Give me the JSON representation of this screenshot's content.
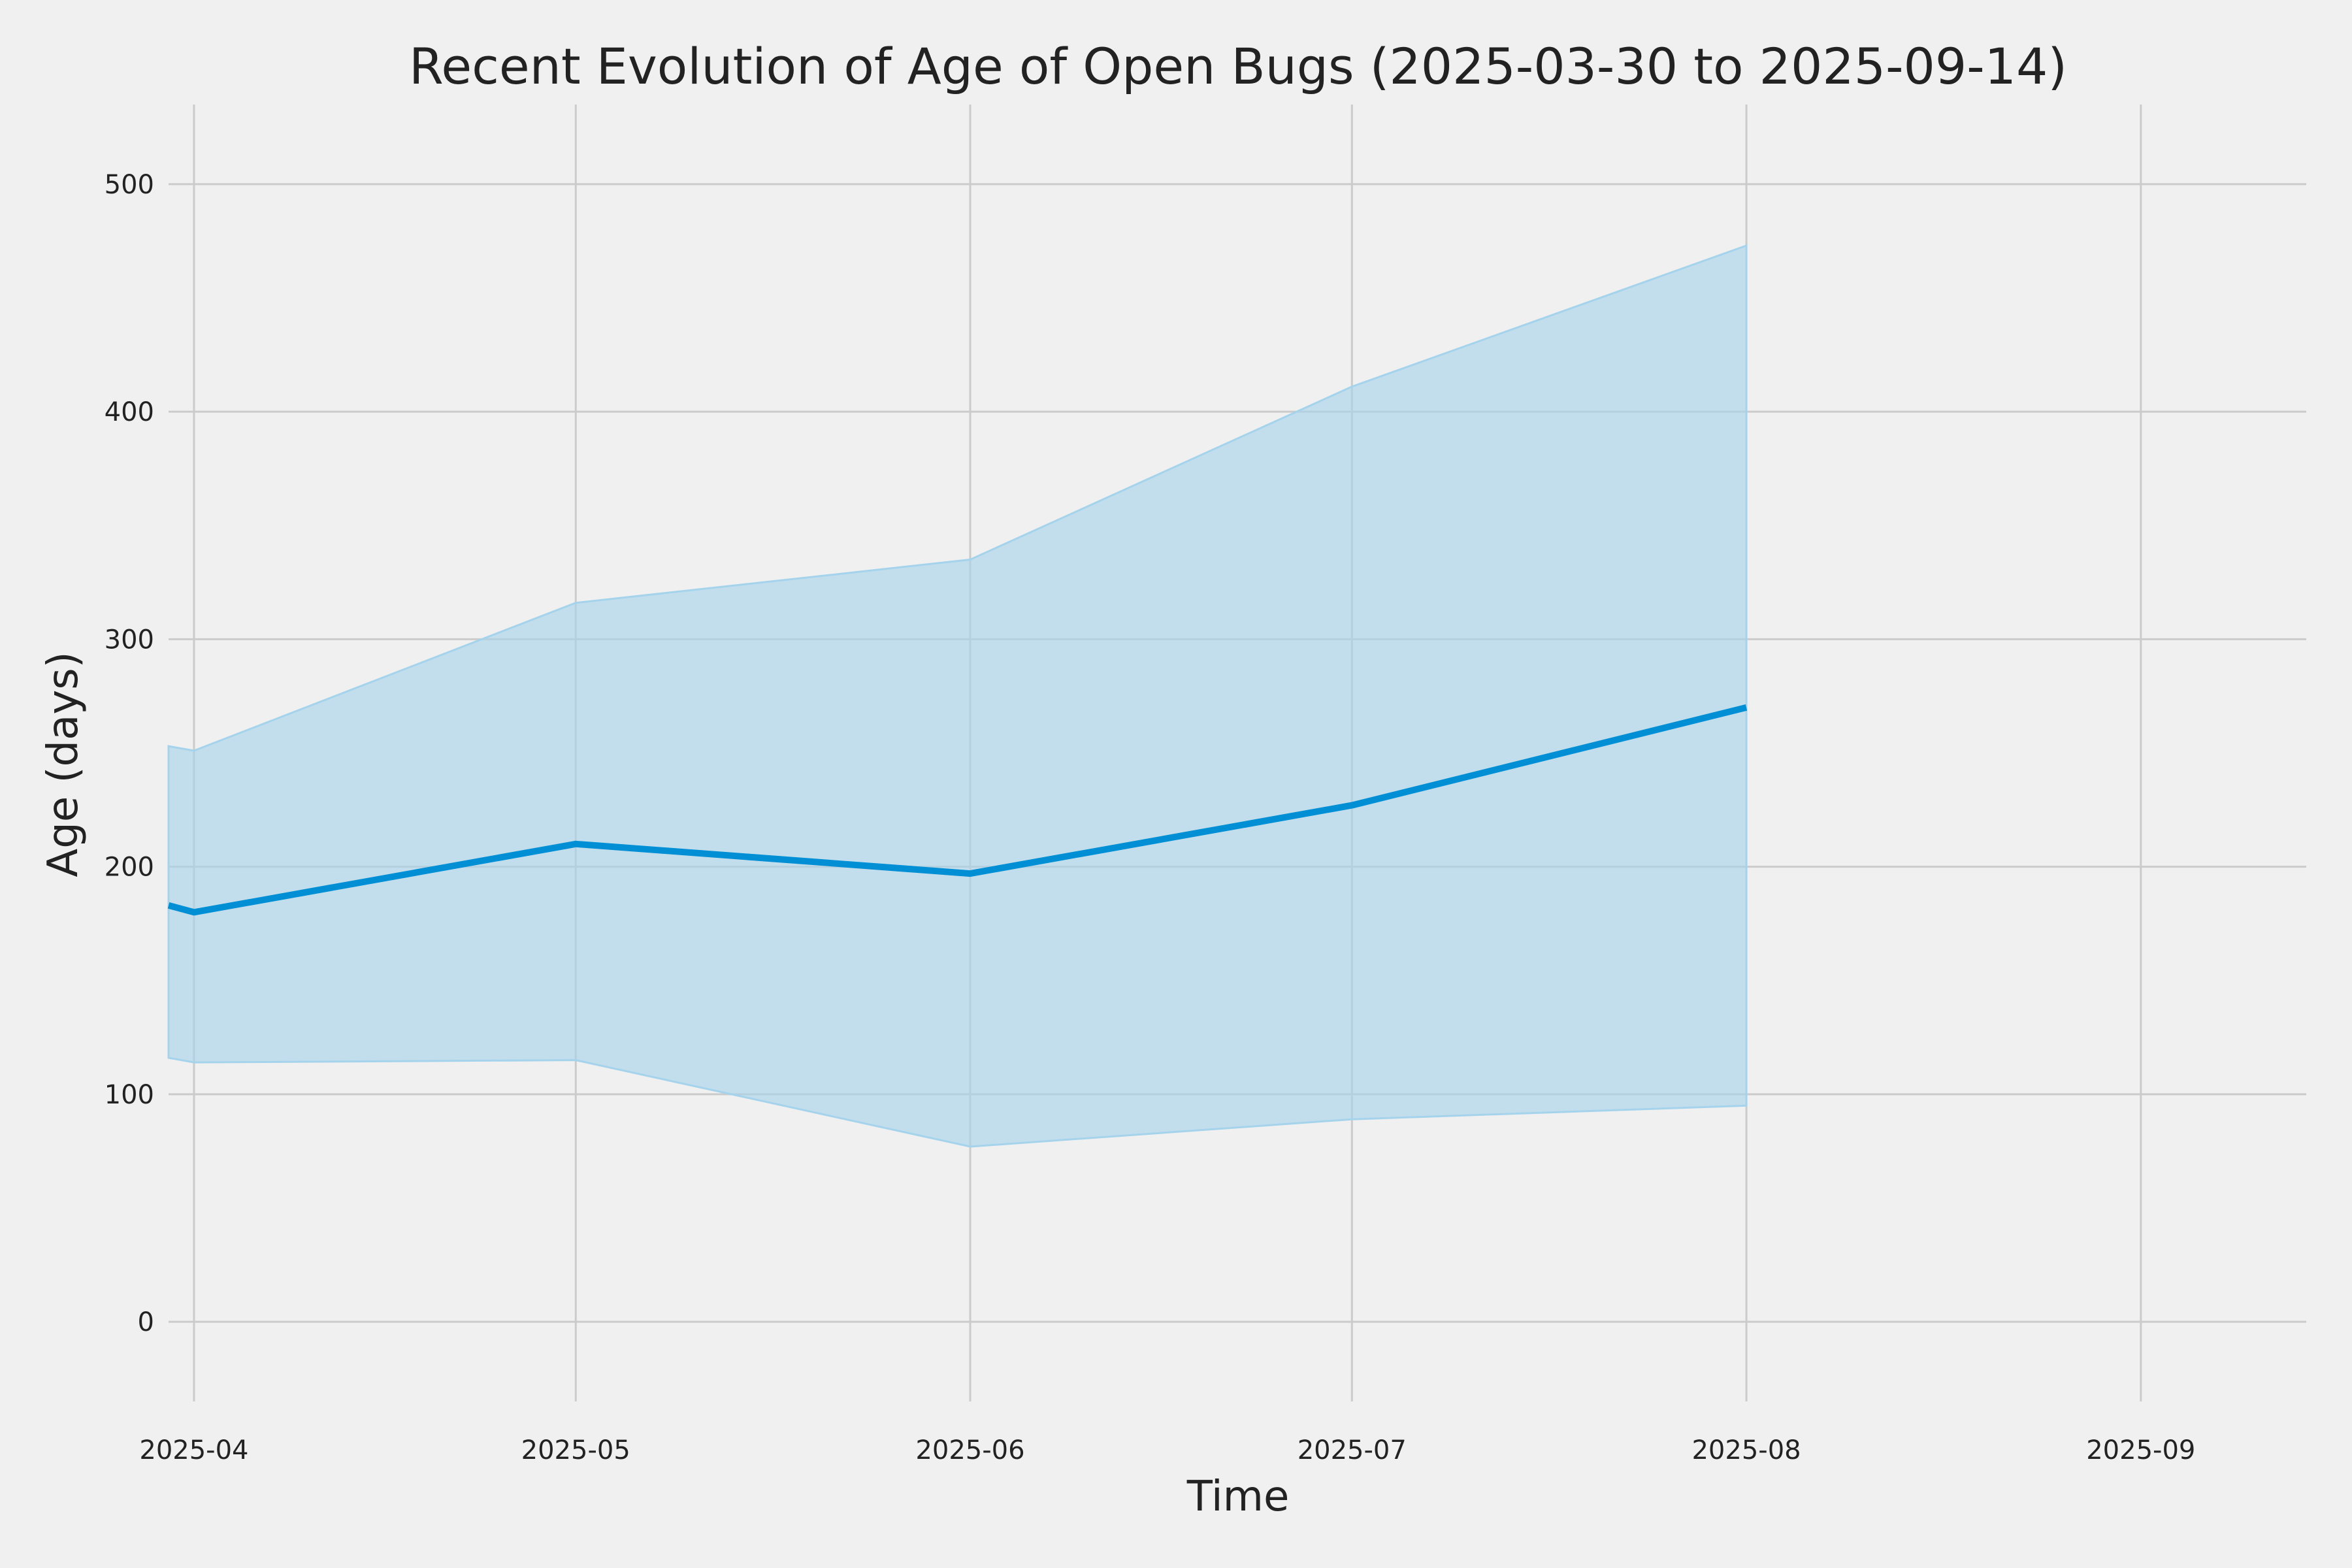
{
  "chart_data": {
    "type": "line",
    "title": "Recent Evolution of Age of Open Bugs (2025-03-30 to 2025-09-14)",
    "xlabel": "Time",
    "ylabel": "Age (days)",
    "xlim": [
      "2025-03-30",
      "2025-09-14"
    ],
    "ylim": [
      -35,
      535
    ],
    "grid": true,
    "x_ticks": [
      "2025-04",
      "2025-05",
      "2025-06",
      "2025-07",
      "2025-08",
      "2025-09"
    ],
    "y_ticks": [
      "0",
      "100",
      "200",
      "300",
      "400",
      "500"
    ],
    "series": [
      {
        "x": [
          "2025-03-30",
          "2025-04-01",
          "2025-05-01",
          "2025-06-01",
          "2025-07-01",
          "2025-08-01"
        ],
        "values": [
          183,
          180,
          210,
          197,
          227,
          270
        ],
        "lower": [
          116,
          114,
          115,
          77,
          89,
          95
        ],
        "upper": [
          253,
          251,
          316,
          335,
          411,
          473
        ],
        "color": "#008fd5",
        "band_color": "#a6d3ec"
      }
    ]
  }
}
